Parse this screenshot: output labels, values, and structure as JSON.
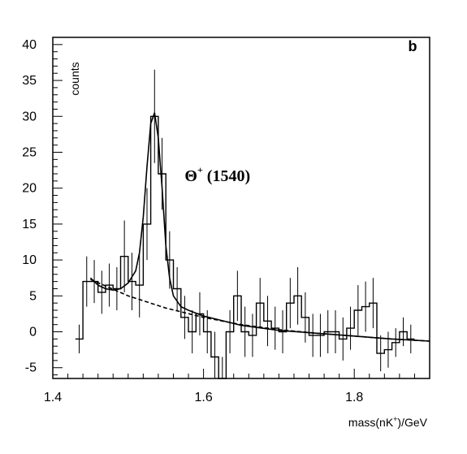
{
  "chart_data": {
    "type": "histogram",
    "title": "",
    "panel_label": "b",
    "xlabel": "mass(nK",
    "xlabel_sup": "+",
    "xlabel_suffix": ")/GeV",
    "ylabel": "counts",
    "xlim": [
      1.4,
      1.9
    ],
    "ylim": [
      -6.5,
      41
    ],
    "xticks": [
      1.4,
      1.6,
      1.8
    ],
    "xtick_labels": [
      "1.4",
      "1.6",
      "1.8"
    ],
    "yticks": [
      -5,
      0,
      5,
      10,
      15,
      20,
      25,
      30,
      35,
      40
    ],
    "ytick_labels": [
      "-5",
      "0",
      "5",
      "10",
      "15",
      "20",
      "25",
      "30",
      "35",
      "40"
    ],
    "annotation": {
      "text": "Θ",
      "sup": "+",
      "suffix": " (1540)",
      "x": 1.575,
      "y": 21
    },
    "bin_width": 0.01,
    "bins_x_start": 1.43,
    "bins_counts": [
      -1,
      7,
      7,
      5.5,
      6.5,
      6,
      10.5,
      7,
      6.5,
      15,
      30,
      22,
      10,
      6,
      2,
      0,
      2.5,
      0,
      -3.5,
      -6.5,
      0,
      5,
      0,
      -0.5,
      4,
      1.5,
      0.5,
      0,
      4,
      5,
      2,
      -0.5,
      -0.5,
      0,
      0,
      -1,
      0.5,
      3,
      3.5,
      4,
      -3,
      -2.5,
      -1.5,
      0,
      -1
    ],
    "bins_errors": [
      2,
      3.5,
      3,
      3,
      3,
      3,
      5,
      4,
      4.5,
      5,
      6.5,
      5,
      4,
      3,
      3,
      3,
      3,
      3,
      3.5,
      3,
      3,
      3.5,
      3.5,
      3,
      3.5,
      3.5,
      3,
      3,
      3.5,
      4,
      3.5,
      3,
      3,
      3,
      3,
      3,
      3,
      3.5,
      3.5,
      3.5,
      2.5,
      2.5,
      2,
      2,
      2
    ],
    "series": [
      {
        "name": "",
        "style": "solid",
        "x": [
          1.45,
          1.46,
          1.47,
          1.48,
          1.49,
          1.5,
          1.51,
          1.515,
          1.52,
          1.525,
          1.53,
          1.535,
          1.54,
          1.545,
          1.55,
          1.555,
          1.56,
          1.57,
          1.58,
          1.6,
          1.65,
          1.7,
          1.75,
          1.8,
          1.85,
          1.9
        ],
        "y": [
          7.5,
          6.5,
          6.0,
          5.8,
          6.0,
          6.8,
          8.5,
          11.0,
          16.0,
          23.0,
          29.0,
          30.5,
          27.0,
          20.0,
          12.0,
          7.5,
          5.0,
          3.5,
          3.0,
          2.2,
          0.9,
          0.2,
          -0.2,
          -0.6,
          -1.0,
          -1.3
        ]
      },
      {
        "name": "",
        "style": "dashed",
        "x": [
          1.45,
          1.5,
          1.55,
          1.6,
          1.65,
          1.7,
          1.75,
          1.8,
          1.85,
          1.9
        ],
        "y": [
          7.3,
          5.0,
          3.3,
          2.0,
          1.0,
          0.3,
          -0.2,
          -0.6,
          -1.0,
          -1.3
        ]
      }
    ],
    "grid": false,
    "legend": "none"
  }
}
